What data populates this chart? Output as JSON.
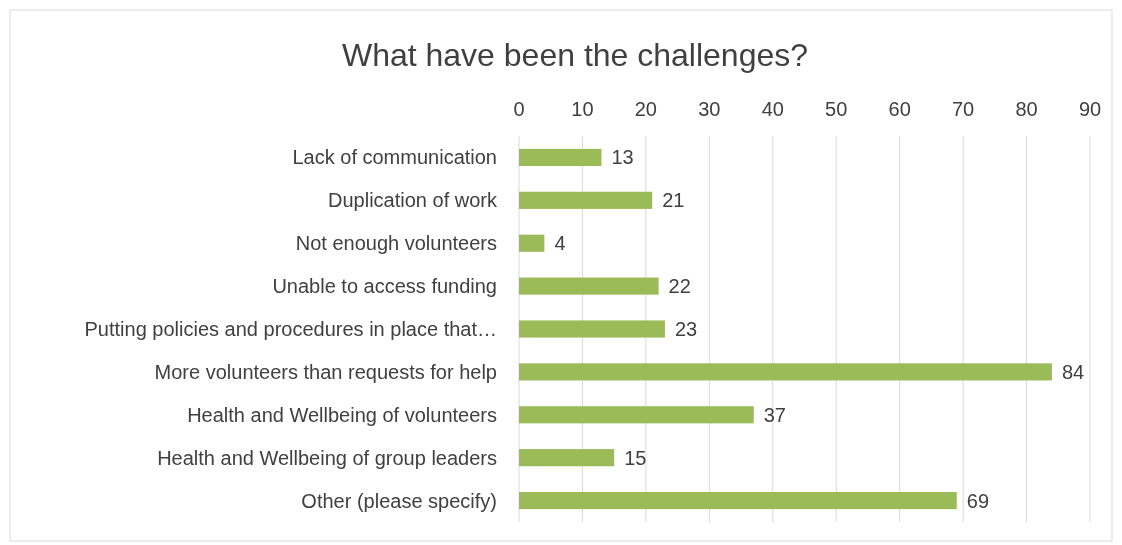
{
  "chart_data": {
    "type": "bar",
    "orientation": "horizontal",
    "title": "What have been the challenges?",
    "categories": [
      "Lack of communication",
      "Duplication of work",
      "Not enough volunteers",
      "Unable to access funding",
      "Putting policies and procedures in place that…",
      "More volunteers than requests for help",
      "Health and Wellbeing of volunteers",
      "Health and Wellbeing of group leaders",
      "Other (please specify)"
    ],
    "values": [
      13,
      21,
      4,
      22,
      23,
      84,
      37,
      15,
      69
    ],
    "color": "#9bbb59",
    "xlim": [
      0,
      90
    ],
    "xticks": [
      0,
      10,
      20,
      30,
      40,
      50,
      60,
      70,
      80,
      90
    ],
    "grid": "x",
    "data_labels": true
  }
}
